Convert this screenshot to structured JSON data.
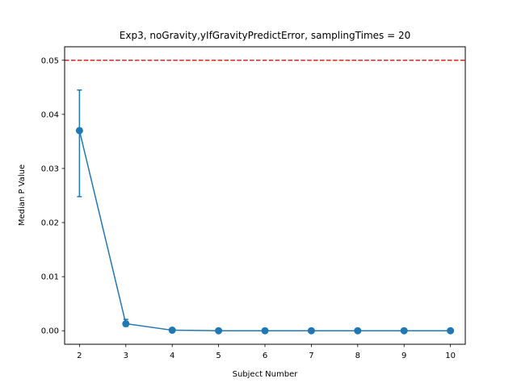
{
  "chart_data": {
    "type": "line",
    "title": "Exp3, noGravity,yIfGravityPredictError, samplingTimes = 20",
    "xlabel": "Subject Number",
    "ylabel": "Median P Value",
    "xlim": [
      1.68,
      10.32
    ],
    "ylim": [
      -0.0025,
      0.0525
    ],
    "xticks": [
      2,
      3,
      4,
      5,
      6,
      7,
      8,
      9,
      10
    ],
    "yticks": [
      0.0,
      0.01,
      0.02,
      0.03,
      0.04,
      0.05
    ],
    "ytick_labels": [
      "0.00",
      "0.01",
      "0.02",
      "0.03",
      "0.04",
      "0.05"
    ],
    "grid": false,
    "series": [
      {
        "x": [
          2,
          3,
          4,
          5,
          6,
          7,
          8,
          9,
          10
        ],
        "y": [
          0.037,
          0.0013,
          0.0001,
          0.0,
          0.0,
          0.0,
          0.0,
          0.0,
          0.0
        ],
        "yerr_low": [
          0.0248,
          0.0008,
          0.0001,
          0.0,
          0.0,
          0.0,
          0.0,
          0.0,
          0.0
        ],
        "yerr_high": [
          0.0445,
          0.0021,
          0.0001,
          0.0,
          0.0,
          0.0,
          0.0,
          0.0,
          0.0
        ],
        "color": "#1f77b4"
      }
    ],
    "reference_line": {
      "y": 0.05,
      "color": "#d62728",
      "style": "dashed"
    }
  }
}
